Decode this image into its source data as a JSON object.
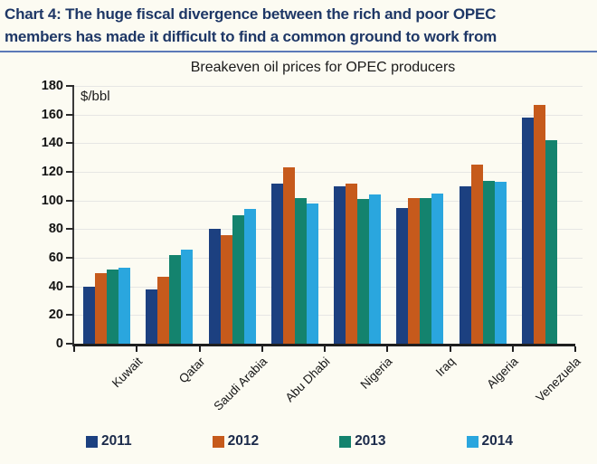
{
  "header": {
    "line1": "Chart 4: The huge fiscal divergence between the rich and poor OPEC",
    "line2": "members has made it difficult to find a common ground to work from"
  },
  "colors": {
    "header_text": "#1e3766",
    "header_underline": "#5b79b8",
    "axis": "#1f1f1f",
    "gridline": "#e6e6e4",
    "background": "#fcfbf2"
  },
  "chart_data": {
    "type": "bar",
    "title": "Breakeven oil prices for OPEC producers",
    "unit_label": "$/bbl",
    "categories": [
      "Kuwait",
      "Qatar",
      "Saudi Arabia",
      "Abu Dhabi",
      "Nigeria",
      "Iraq",
      "Algeria",
      "Venezuela"
    ],
    "series": [
      {
        "name": "2011",
        "color": "#1c4080",
        "values": [
          40,
          38,
          80,
          112,
          110,
          95,
          110,
          158
        ]
      },
      {
        "name": "2012",
        "color": "#c65a1c",
        "values": [
          49,
          47,
          76,
          123,
          112,
          102,
          125,
          167
        ]
      },
      {
        "name": "2013",
        "color": "#14836e",
        "values": [
          52,
          62,
          90,
          102,
          101,
          102,
          114,
          142
        ]
      },
      {
        "name": "2014",
        "color": "#2aa6de",
        "values": [
          53,
          66,
          94,
          98,
          104,
          105,
          113,
          null
        ]
      }
    ],
    "ylim": [
      0,
      180
    ],
    "ytick_step": 20,
    "grid": true,
    "legend_position": "bottom"
  }
}
